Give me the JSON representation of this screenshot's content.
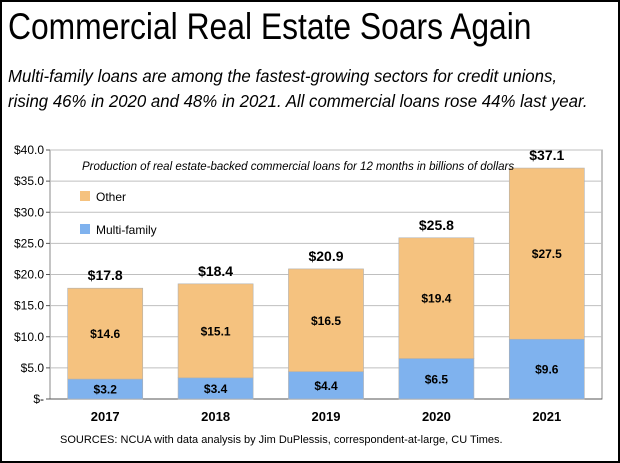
{
  "header": {
    "title": "Commercial Real Estate Soars Again",
    "subtitle_line1": "Multi-family loans are among the fastest-growing sectors for credit unions,",
    "subtitle_line2": "rising 46% in 2020 and 48% in 2021. All commercial loans rose 44% last year."
  },
  "footer": {
    "source": "SOURCES: NCUA with data analysis by Jim DuPlessis, correspondent-at-large, CU Times."
  },
  "colors": {
    "other": "#F5C27F",
    "multi_family": "#7FB2EE"
  },
  "chart_data": {
    "type": "bar",
    "stacked": true,
    "annotation": "Production of real estate-backed commercial loans for 12 months in billions of dollars",
    "categories": [
      "2017",
      "2018",
      "2019",
      "2020",
      "2021"
    ],
    "series": [
      {
        "name": "Multi-family",
        "values": [
          3.2,
          3.4,
          4.4,
          6.5,
          9.6
        ],
        "labels": [
          "$3.2",
          "$3.4",
          "$4.4",
          "$6.5",
          "$9.6"
        ],
        "color": "#7FB2EE"
      },
      {
        "name": "Other",
        "values": [
          14.6,
          15.1,
          16.5,
          19.4,
          27.5
        ],
        "labels": [
          "$14.6",
          "$15.1",
          "$16.5",
          "$19.4",
          "$27.5"
        ],
        "color": "#F5C27F"
      }
    ],
    "totals": [
      17.8,
      18.4,
      20.9,
      25.8,
      37.1
    ],
    "total_labels": [
      "$17.8",
      "$18.4",
      "$20.9",
      "$25.8",
      "$37.1"
    ],
    "yticks": [
      0,
      5,
      10,
      15,
      20,
      25,
      30,
      35,
      40
    ],
    "ytick_labels": [
      "$-",
      "$5.0",
      "$10.0",
      "$15.0",
      "$20.0",
      "$25.0",
      "$30.0",
      "$35.0",
      "$40.0"
    ],
    "ylim": [
      0,
      40
    ],
    "grid": true,
    "legend": {
      "position": "top-left",
      "entries": [
        "Other",
        "Multi-family"
      ]
    }
  }
}
